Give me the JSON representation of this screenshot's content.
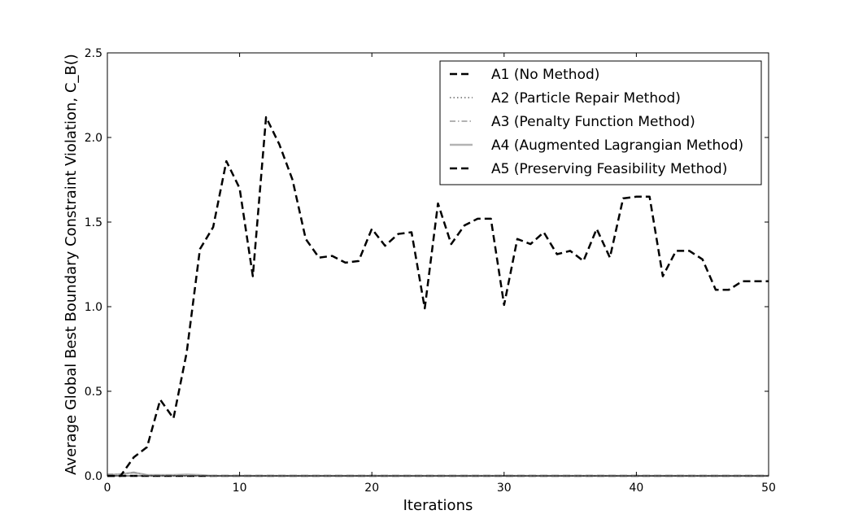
{
  "chart_data": {
    "type": "line",
    "title": "",
    "xlabel": "Iterations",
    "ylabel": "Average Global Best Boundary Constraint Violation, C_B()",
    "xlim": [
      0,
      50
    ],
    "ylim": [
      0,
      2.5
    ],
    "xticks": [
      0,
      10,
      20,
      30,
      40,
      50
    ],
    "yticks": [
      0.0,
      0.5,
      1.0,
      1.5,
      2.0,
      2.5
    ],
    "xtick_labels": [
      "0",
      "10",
      "20",
      "30",
      "40",
      "50"
    ],
    "ytick_labels": [
      "0.0",
      "0.5",
      "1.0",
      "1.5",
      "2.0",
      "2.5"
    ],
    "grid": false,
    "legend_position": "top-right",
    "series": [
      {
        "name": "A1 (No Method)",
        "style": "dashed",
        "color": "#000000",
        "x": [
          0,
          1,
          2,
          3,
          4,
          5,
          6,
          7,
          8,
          9,
          10,
          11,
          12,
          13,
          14,
          15,
          16,
          17,
          18,
          19,
          20,
          21,
          22,
          23,
          24,
          25,
          26,
          27,
          28,
          29,
          30,
          31,
          32,
          33,
          34,
          35,
          36,
          37,
          38,
          39,
          40,
          41,
          42,
          43,
          44,
          45,
          46,
          47,
          48,
          49,
          50
        ],
        "y": [
          0.0,
          0.0,
          0.11,
          0.17,
          0.45,
          0.34,
          0.73,
          1.34,
          1.47,
          1.86,
          1.7,
          1.18,
          2.12,
          1.96,
          1.75,
          1.4,
          1.29,
          1.3,
          1.26,
          1.27,
          1.46,
          1.36,
          1.43,
          1.44,
          0.99,
          1.61,
          1.37,
          1.48,
          1.52,
          1.52,
          1.01,
          1.4,
          1.37,
          1.44,
          1.31,
          1.33,
          1.27,
          1.46,
          1.29,
          1.64,
          1.65,
          1.65,
          1.18,
          1.33,
          1.33,
          1.28,
          1.1,
          1.1,
          1.15,
          1.15,
          1.15
        ]
      },
      {
        "name": "A2 (Particle Repair Method)",
        "style": "dotted",
        "color": "#666666",
        "x": [
          0,
          1,
          2,
          3,
          4,
          5,
          6,
          7,
          8,
          9,
          10,
          11,
          12,
          13,
          14,
          15,
          16,
          17,
          18,
          19,
          20,
          21,
          22,
          23,
          24,
          25,
          26,
          27,
          28,
          29,
          30,
          31,
          32,
          33,
          34,
          35,
          36,
          37,
          38,
          39,
          40,
          41,
          42,
          43,
          44,
          45,
          46,
          47,
          48,
          49,
          50
        ],
        "y": [
          0,
          0,
          0,
          0,
          0,
          0,
          0,
          0,
          0,
          0,
          0,
          0,
          0,
          0,
          0,
          0,
          0,
          0,
          0,
          0,
          0,
          0,
          0,
          0,
          0,
          0,
          0,
          0,
          0,
          0,
          0,
          0,
          0,
          0,
          0,
          0,
          0,
          0,
          0,
          0,
          0,
          0,
          0,
          0,
          0,
          0,
          0,
          0,
          0,
          0,
          0
        ]
      },
      {
        "name": "A3 (Penalty Function Method)",
        "style": "dashdot",
        "color": "#999999",
        "x": [
          0,
          1,
          2,
          3,
          4,
          5,
          6,
          7,
          8,
          9,
          10,
          11,
          12,
          13,
          14,
          15,
          16,
          17,
          18,
          19,
          20,
          21,
          22,
          23,
          24,
          25,
          26,
          27,
          28,
          29,
          30,
          31,
          32,
          33,
          34,
          35,
          36,
          37,
          38,
          39,
          40,
          41,
          42,
          43,
          44,
          45,
          46,
          47,
          48,
          49,
          50
        ],
        "y": [
          0.01,
          0.01,
          0.02,
          0.005,
          0.005,
          0.005,
          0.005,
          0.003,
          0,
          0,
          0,
          0,
          0,
          0,
          0,
          0,
          0,
          0,
          0,
          0,
          0,
          0,
          0,
          0,
          0,
          0,
          0,
          0,
          0,
          0,
          0,
          0,
          0,
          0,
          0,
          0,
          0,
          0,
          0,
          0,
          0,
          0,
          0,
          0,
          0,
          0,
          0,
          0,
          0,
          0,
          0
        ]
      },
      {
        "name": "A4 (Augmented Lagrangian Method)",
        "style": "solid",
        "color": "#b3b3b3",
        "x": [
          0,
          1,
          2,
          3,
          4,
          5,
          6,
          7,
          8,
          9,
          10,
          11,
          12,
          13,
          14,
          15,
          16,
          17,
          18,
          19,
          20,
          21,
          22,
          23,
          24,
          25,
          26,
          27,
          28,
          29,
          30,
          31,
          32,
          33,
          34,
          35,
          36,
          37,
          38,
          39,
          40,
          41,
          42,
          43,
          44,
          45,
          46,
          47,
          48,
          49,
          50
        ],
        "y": [
          0.005,
          0.01,
          0.02,
          0.005,
          0.005,
          0.005,
          0.008,
          0.005,
          0,
          0,
          0,
          0,
          0,
          0,
          0,
          0,
          0,
          0,
          0,
          0,
          0,
          0,
          0,
          0,
          0,
          0,
          0,
          0,
          0,
          0,
          0,
          0,
          0,
          0,
          0,
          0,
          0,
          0,
          0,
          0,
          0,
          0,
          0,
          0,
          0,
          0,
          0,
          0,
          0,
          0,
          0
        ]
      },
      {
        "name": "A5 (Preserving Feasibility Method)",
        "style": "dashed",
        "color": "#000000",
        "x": [
          0,
          1,
          2,
          3,
          4,
          5,
          6,
          7,
          8,
          9,
          10,
          11,
          12,
          13,
          14,
          15,
          16,
          17,
          18,
          19,
          20,
          21,
          22,
          23,
          24,
          25,
          26,
          27,
          28,
          29,
          30,
          31,
          32,
          33,
          34,
          35,
          36,
          37,
          38,
          39,
          40,
          41,
          42,
          43,
          44,
          45,
          46,
          47,
          48,
          49,
          50
        ],
        "y": [
          0,
          0,
          0,
          0,
          0,
          0,
          0,
          0,
          0,
          0,
          0,
          0,
          0,
          0,
          0,
          0,
          0,
          0,
          0,
          0,
          0,
          0,
          0,
          0,
          0,
          0,
          0,
          0,
          0,
          0,
          0,
          0,
          0,
          0,
          0,
          0,
          0,
          0,
          0,
          0,
          0,
          0,
          0,
          0,
          0,
          0,
          0,
          0,
          0,
          0,
          0
        ]
      }
    ]
  }
}
